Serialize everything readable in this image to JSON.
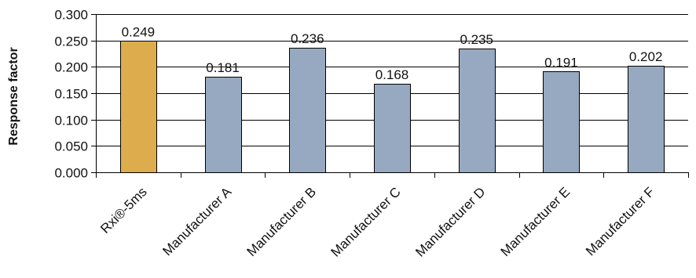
{
  "chart_data": {
    "type": "bar",
    "categories": [
      "Rxi®-5ms",
      "Manufacturer A",
      "Manufacturer B",
      "Manufacturer C",
      "Manufacturer D",
      "Manufacturer E",
      "Manufacturer F"
    ],
    "values": [
      0.249,
      0.181,
      0.236,
      0.168,
      0.235,
      0.191,
      0.202
    ],
    "data_labels": [
      "0.249",
      "0.181",
      "0.236",
      "0.168",
      "0.235",
      "0.191",
      "0.202"
    ],
    "ylabel": "Response factor",
    "xlabel": "",
    "ylim": [
      0,
      0.3
    ],
    "yticks": [
      0.0,
      0.05,
      0.1,
      0.15,
      0.2,
      0.25,
      0.3
    ],
    "ytick_labels": [
      "0.000",
      "0.050",
      "0.100",
      "0.150",
      "0.200",
      "0.250",
      "0.300"
    ],
    "grid": true,
    "legend": "none",
    "colors": {
      "highlight": "#DDAD4D",
      "default": "#96A9C0",
      "grid": "#000000"
    },
    "highlight_index": 0
  }
}
